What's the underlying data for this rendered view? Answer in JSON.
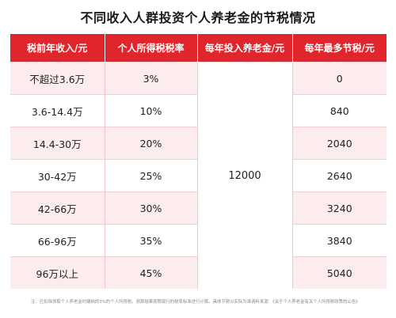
{
  "title": "不同收入人群投资个人养老金的节税情况",
  "headers": [
    "税前年收入/元",
    "个人所得税税率",
    "每年投入养老金/元",
    "每年最多节税/元"
  ],
  "annual_contribution": "12000",
  "rows": [
    {
      "income": "不超过3.6万",
      "rate": "3%",
      "saving": "0"
    },
    {
      "income": "3.6-14.4万",
      "rate": "10%",
      "saving": "840"
    },
    {
      "income": "14.4-30万",
      "rate": "20%",
      "saving": "2040"
    },
    {
      "income": "30-42万",
      "rate": "25%",
      "saving": "2640"
    },
    {
      "income": "42-66万",
      "rate": "30%",
      "saving": "3240"
    },
    {
      "income": "66-96万",
      "rate": "35%",
      "saving": "3840"
    },
    {
      "income": "96万以上",
      "rate": "45%",
      "saving": "5040"
    }
  ],
  "footnote": "注：已扣除领取个人养老金时缴纳的3%的个人所得税。测算结果按照现行的税率标准进行计算。具体节税以实际为准请料来源：《关于个人养老金有关个人所得税政策的公告》",
  "colors": {
    "header_bg": "#e0262c",
    "row_pink": "#fdeced",
    "row_white": "#ffffff"
  }
}
